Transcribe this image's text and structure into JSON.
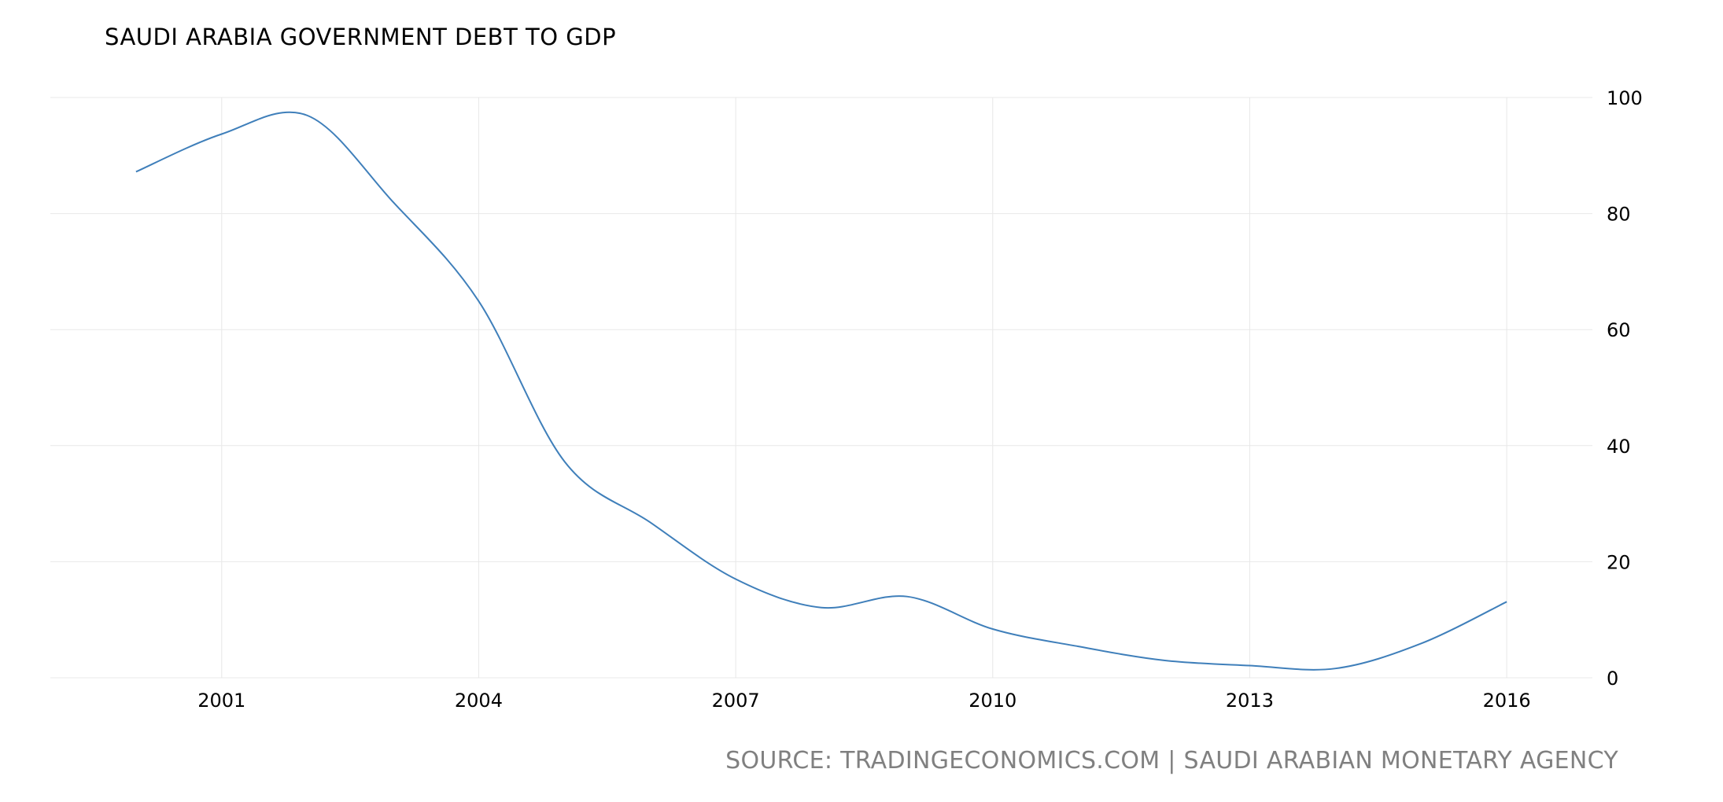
{
  "chart_data": {
    "type": "line",
    "title": "SAUDI ARABIA GOVERNMENT DEBT TO GDP",
    "source": "SOURCE: TRADINGECONOMICS.COM | SAUDI ARABIAN MONETARY AGENCY",
    "xlabel": "",
    "ylabel": "",
    "x": [
      2000,
      2001,
      2002,
      2003,
      2004,
      2005,
      2006,
      2007,
      2008,
      2009,
      2010,
      2011,
      2012,
      2013,
      2014,
      2015,
      2016
    ],
    "series": [
      {
        "name": "Government Debt to GDP",
        "values": [
          87.2,
          93.7,
          96.9,
          82.0,
          64.9,
          37.3,
          26.8,
          17.0,
          12.1,
          14.0,
          8.4,
          5.4,
          3.0,
          2.1,
          1.6,
          5.9,
          13.1
        ]
      }
    ],
    "x_ticks": [
      2001,
      2004,
      2007,
      2010,
      2013,
      2016
    ],
    "y_ticks": [
      0,
      20,
      40,
      60,
      80,
      100
    ],
    "xlim": [
      1999,
      2017
    ],
    "ylim": [
      0,
      100
    ],
    "grid": true,
    "line_color": "#3f7fba",
    "grid_color": "#e8e8e8"
  }
}
